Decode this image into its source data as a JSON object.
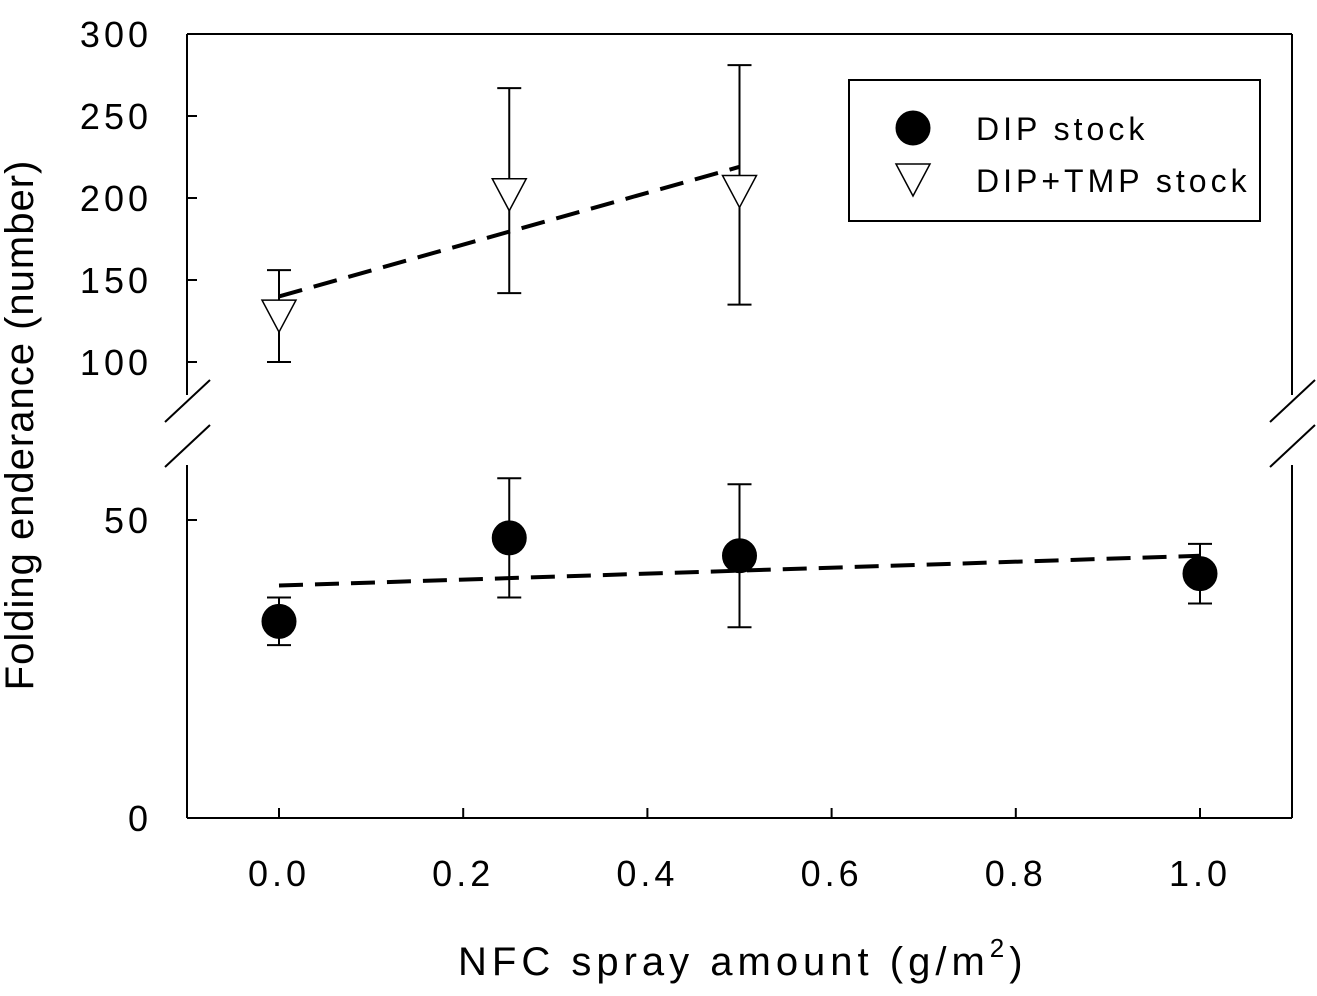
{
  "chart_data": {
    "type": "scatter",
    "title": "",
    "xlabel": "NFC spray amount (g/m",
    "xlabel_sup": "2",
    "xlabel_close": ")",
    "ylabel": "Folding enderance (number)",
    "xlim": [
      -0.1,
      1.1
    ],
    "x_ticks": [
      "0.0",
      "0.2",
      "0.4",
      "0.6",
      "0.8",
      "1.0"
    ],
    "x_tick_values": [
      0.0,
      0.2,
      0.4,
      0.6,
      0.8,
      1.0
    ],
    "y_axis_break": true,
    "y_lower_range": [
      0,
      60
    ],
    "y_upper_range": [
      70,
      300
    ],
    "y_ticks_lower": [
      "0",
      "50"
    ],
    "y_tick_values_lower": [
      0,
      50
    ],
    "y_ticks_upper": [
      "100",
      "150",
      "200",
      "250",
      "300"
    ],
    "y_tick_values_upper": [
      100,
      150,
      200,
      250,
      300
    ],
    "grid": false,
    "legend_position": "top-right",
    "series": [
      {
        "name": "DIP stock",
        "marker": "filled-circle",
        "color": "#000000",
        "x": [
          0.0,
          0.25,
          0.5,
          1.0
        ],
        "y": [
          33,
          47,
          44,
          41
        ],
        "y_err_low": [
          29,
          37,
          32,
          36
        ],
        "y_err_high": [
          37,
          57,
          56,
          46
        ],
        "trend": {
          "style": "dashed",
          "x": [
            0.0,
            1.0
          ],
          "y": [
            39,
            44
          ]
        }
      },
      {
        "name": "DIP+TMP stock",
        "marker": "open-triangle-down",
        "color": "#000000",
        "x": [
          0.0,
          0.25,
          0.5
        ],
        "y": [
          128,
          202,
          204
        ],
        "y_err_low": [
          100,
          142,
          135
        ],
        "y_err_high": [
          156,
          267,
          281
        ],
        "trend": {
          "style": "dashed",
          "x": [
            0.0,
            0.5
          ],
          "y": [
            140,
            219
          ]
        }
      }
    ]
  }
}
